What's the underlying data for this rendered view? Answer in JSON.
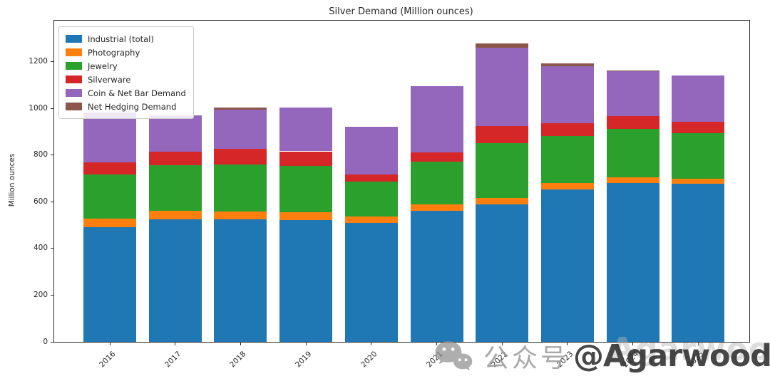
{
  "figure": {
    "title": "Silver Demand (Million ounces)",
    "ylabel": "Million ounces",
    "background": "#ffffff"
  },
  "chart_data": {
    "type": "bar",
    "stacked": true,
    "title": "Silver Demand (Million ounces)",
    "xlabel": "",
    "ylabel": "Million ounces",
    "categories": [
      "2016",
      "2017",
      "2018",
      "2019",
      "2020",
      "2021",
      "2022",
      "2023",
      "2024",
      "2025"
    ],
    "series": [
      {
        "name": "Industrial (total)",
        "color": "#1f77b4",
        "values": [
          490.6,
          525.7,
          524.7,
          523.4,
          509.2,
          561.1,
          588.9,
          654.4,
          680.5,
          677.4
        ]
      },
      {
        "name": "Photography",
        "color": "#ff7f0e",
        "values": [
          39.0,
          36.2,
          33.7,
          32.0,
          27.6,
          28.9,
          27.5,
          25.7,
          24.9,
          22.9
        ]
      },
      {
        "name": "Jewelry",
        "color": "#2ca02c",
        "values": [
          189.1,
          195.6,
          202.7,
          200.3,
          148.8,
          181.4,
          234.1,
          203.1,
          208.7,
          194.8
        ]
      },
      {
        "name": "Silverware",
        "color": "#d62728",
        "values": [
          52.1,
          58.4,
          67.6,
          61.1,
          32.1,
          40.5,
          73.5,
          55.2,
          54.2,
          47.0
        ]
      },
      {
        "name": "Coin & Net Bar Demand",
        "color": "#9467bd",
        "values": [
          213.1,
          156.2,
          165.6,
          187.6,
          205.1,
          284.0,
          337.1,
          243.1,
          190.9,
          200.6
        ]
      },
      {
        "name": "Net Hedging Demand",
        "color": "#8c564b",
        "values": [
          0,
          0,
          10.0,
          0,
          0,
          0,
          17.9,
          12.0,
          4.0,
          0
        ]
      }
    ],
    "yticks": [
      0,
      200,
      400,
      600,
      800,
      1000,
      1200
    ],
    "ylim": [
      0,
      1377
    ],
    "grid": false,
    "legend_position": "upper left"
  },
  "watermark": {
    "prefix": "公众号",
    "handle": "@AgarwoodCapital",
    "ghost": "AgarwoodCapital",
    "icon": "wechat-icon",
    "color_light": "#9b9b9b",
    "color_dark": "#2d2d2d"
  }
}
